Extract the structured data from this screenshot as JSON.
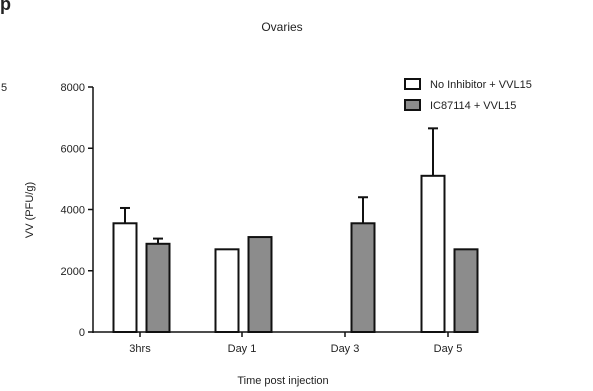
{
  "chart_data": {
    "type": "bar",
    "title": "Ovaries",
    "xlabel": "Time post injection",
    "ylabel": "VV (PFU/g)",
    "categories": [
      "3hrs",
      "Day 1",
      "Day 3",
      "Day 5"
    ],
    "ylim": [
      0,
      8000
    ],
    "yticks": [
      0,
      2000,
      4000,
      6000,
      8000
    ],
    "legend_position": "top-right",
    "grid": false,
    "series": [
      {
        "name": "No Inhibitor + VVL15",
        "color": "#ffffff",
        "values": [
          3550,
          2700,
          null,
          5100
        ],
        "errors": [
          500,
          null,
          null,
          1550
        ]
      },
      {
        "name": "IC87114 + VVL15",
        "color": "#8c8c8c",
        "values": [
          2880,
          3100,
          3550,
          2700
        ],
        "errors": [
          170,
          null,
          850,
          null
        ]
      }
    ]
  },
  "edge_fragments": [
    "p",
    "5"
  ]
}
